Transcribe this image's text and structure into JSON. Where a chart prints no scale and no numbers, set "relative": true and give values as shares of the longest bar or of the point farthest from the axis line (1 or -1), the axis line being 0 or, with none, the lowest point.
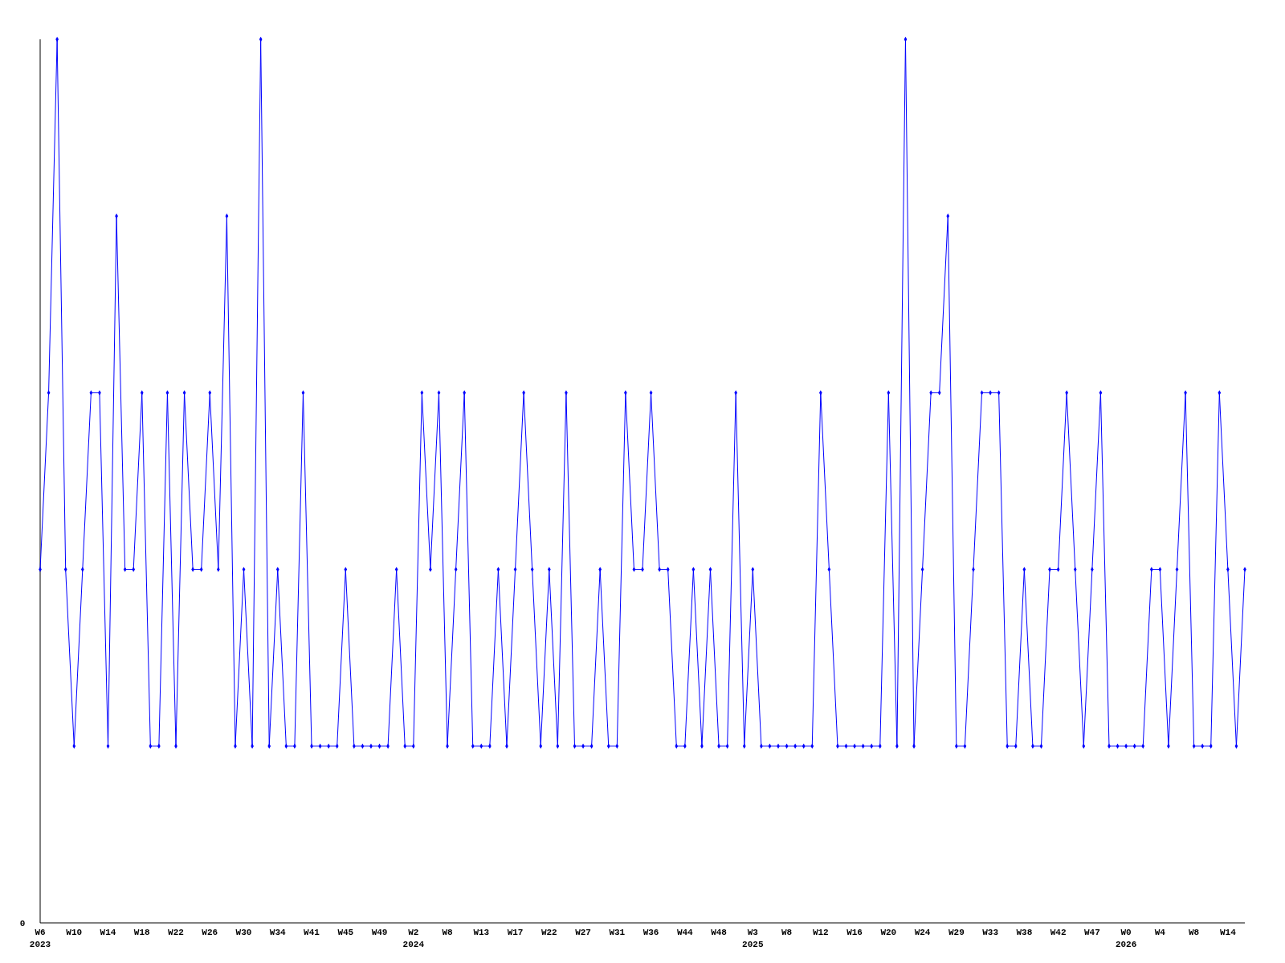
{
  "chart_data": {
    "type": "line",
    "relative": true,
    "marker": "diamond",
    "annotations": [
      "0"
    ],
    "categories": [
      "W6\n2023",
      null,
      null,
      null,
      "W10",
      null,
      null,
      null,
      "W14",
      null,
      null,
      null,
      "W18",
      null,
      null,
      null,
      "W22",
      null,
      null,
      null,
      "W26",
      null,
      null,
      null,
      "W30",
      null,
      null,
      null,
      "W34",
      null,
      null,
      null,
      "W41",
      null,
      null,
      null,
      "W45",
      null,
      null,
      null,
      "W49",
      null,
      null,
      null,
      "W2\n2024",
      null,
      null,
      null,
      "W8",
      null,
      null,
      null,
      "W13",
      null,
      null,
      null,
      "W17",
      null,
      null,
      null,
      "W22",
      null,
      null,
      null,
      "W27",
      null,
      null,
      null,
      "W31",
      null,
      null,
      null,
      "W36",
      null,
      null,
      null,
      "W44",
      null,
      null,
      null,
      "W48",
      null,
      null,
      null,
      "W3\n2025",
      null,
      null,
      null,
      "W8",
      null,
      null,
      null,
      "W12",
      null,
      null,
      null,
      "W16",
      null,
      null,
      null,
      "W20",
      null,
      null,
      null,
      "W24",
      null,
      null,
      null,
      "W29",
      null,
      null,
      null,
      "W33",
      null,
      null,
      null,
      "W38",
      null,
      null,
      null,
      "W42",
      null,
      null,
      null,
      "W47",
      null,
      null,
      null,
      "W0\n2026",
      null,
      null,
      null,
      "W4",
      null,
      null,
      null,
      "W8",
      null,
      null,
      null,
      "W14",
      null,
      null
    ],
    "series": [
      {
        "color": "#0000ff",
        "values": [
          0.4,
          0.6,
          1,
          0.4,
          0.2,
          0.4,
          0.6,
          0.6,
          0.2,
          0.8,
          0.4,
          0.4,
          0.6,
          0.2,
          0.2,
          0.6,
          0.2,
          0.6,
          0.4,
          0.4,
          0.6,
          0.4,
          0.8,
          0.2,
          0.4,
          0.2,
          1,
          0.2,
          0.4,
          0.2,
          0.2,
          0.6,
          0.2,
          0.2,
          0.2,
          0.2,
          0.4,
          0.2,
          0.2,
          0.2,
          0.2,
          0.2,
          0.4,
          0.2,
          0.2,
          0.6,
          0.4,
          0.6,
          0.2,
          0.4,
          0.6,
          0.2,
          0.2,
          0.2,
          0.4,
          0.2,
          0.4,
          0.6,
          0.4,
          0.2,
          0.4,
          0.2,
          0.6,
          0.2,
          0.2,
          0.2,
          0.4,
          0.2,
          0.2,
          0.6,
          0.4,
          0.4,
          0.6,
          0.4,
          0.4,
          0.2,
          0.2,
          0.4,
          0.2,
          0.4,
          0.2,
          0.2,
          0.6,
          0.2,
          0.4,
          0.2,
          0.2,
          0.2,
          0.2,
          0.2,
          0.2,
          0.2,
          0.6,
          0.4,
          0.2,
          0.2,
          0.2,
          0.2,
          0.2,
          0.2,
          0.6,
          0.2,
          1,
          0.2,
          0.4,
          0.6,
          0.6,
          0.8,
          0.2,
          0.2,
          0.4,
          0.6,
          0.6,
          0.6,
          0.2,
          0.2,
          0.4,
          0.2,
          0.2,
          0.4,
          0.4,
          0.6,
          0.4,
          0.2,
          0.4,
          0.6,
          0.2,
          0.2,
          0.2,
          0.2,
          0.2,
          0.4,
          0.4,
          0.2,
          0.4,
          0.6,
          0.2,
          0.2,
          0.2,
          0.6,
          0.4,
          0.2,
          0.4
        ]
      }
    ]
  }
}
